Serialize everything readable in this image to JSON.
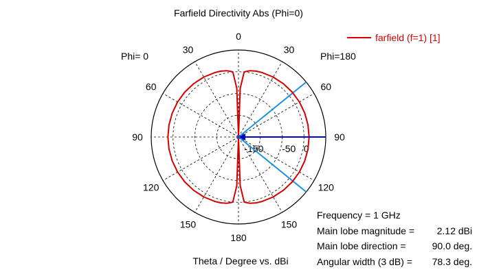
{
  "chart_data": {
    "type": "polar",
    "title": "Farfield Directivity Abs (Phi=0)",
    "left_label": "Phi=  0",
    "right_label": "Phi=180",
    "xlabel": "Theta / Degree vs. dBi",
    "angle_tick_labels": [
      "0",
      "30",
      "60",
      "90",
      "120",
      "150",
      "180",
      "150",
      "120",
      "90",
      "60",
      "30"
    ],
    "angle_tick_values": [
      0,
      30,
      60,
      90,
      120,
      150,
      180,
      -150,
      -120,
      -90,
      -60,
      -30
    ],
    "radial_tick_labels": [
      "-150",
      "-50",
      "0"
    ],
    "radial_tick_values": [
      -150,
      -50,
      0
    ],
    "radial_range_dbi": [
      -200,
      50
    ],
    "series": [
      {
        "name": "farfield (f=1) [1]",
        "color": "#d40000",
        "theta_deg": [
          0,
          2,
          5,
          10,
          15,
          20,
          30,
          40,
          50,
          60,
          70,
          80,
          90,
          100,
          110,
          120,
          130,
          140,
          150,
          160,
          165,
          170,
          175,
          178,
          180
        ],
        "directivity_dbi": [
          -200,
          -60,
          -12,
          -6.5,
          -4.2,
          -2.8,
          -1.2,
          -0.1,
          0.8,
          1.4,
          1.8,
          2.05,
          2.12,
          2.05,
          1.8,
          1.4,
          0.8,
          -0.1,
          -1.2,
          -2.8,
          -4.2,
          -6.5,
          -12,
          -60,
          -200
        ]
      }
    ],
    "main_lobe_direction_deg": 90.0,
    "beamwidth_deg": 78.3,
    "grid": true,
    "legend_position": "top-right"
  },
  "info": {
    "frequency_label": "Frequency = 1 GHz",
    "magnitude_label": "Main lobe magnitude =",
    "magnitude_value": "2.12 dBi",
    "direction_label": "Main lobe direction =",
    "direction_value": "90.0 deg.",
    "width_label": "Angular width (3 dB) =",
    "width_value": "78.3 deg."
  },
  "colors": {
    "pattern": "#d40000",
    "main_lobe": "#0000c8",
    "beamwidth": "#1e90e6",
    "grid": "#000000"
  }
}
